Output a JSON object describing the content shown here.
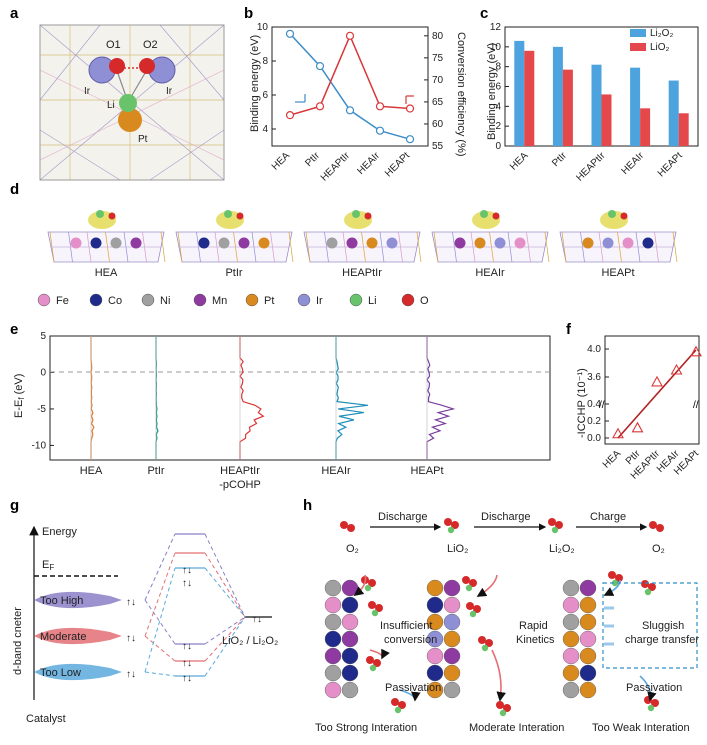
{
  "panel_labels": [
    "a",
    "b",
    "c",
    "d",
    "e",
    "f",
    "g",
    "h"
  ],
  "panel_a": {
    "atoms": [
      "O1",
      "O2",
      "Ir",
      "Ir",
      "Li",
      "Pt"
    ]
  },
  "chart_data": [
    {
      "type": "line",
      "panel": "b",
      "categories": [
        "HEA",
        "PtIr",
        "HEAPtIr",
        "HEAIr",
        "HEAPt"
      ],
      "ylabel": "Binding energy (eV)",
      "y2label": "Conversion efficiency (%)",
      "ylim": [
        3,
        10
      ],
      "y2lim": [
        55,
        82
      ],
      "yticks": [
        "4",
        "6",
        "8",
        "10"
      ],
      "y2ticks": [
        "55",
        "60",
        "65",
        "70",
        "75",
        "80"
      ],
      "series": [
        {
          "axis": "left",
          "color": "#3c8dc8",
          "values": [
            9.6,
            7.7,
            5.1,
            3.9,
            3.4
          ]
        },
        {
          "axis": "right",
          "color": "#d9383a",
          "values": [
            62,
            64,
            80,
            64,
            63.5
          ]
        }
      ]
    },
    {
      "type": "bar",
      "panel": "c",
      "categories": [
        "HEA",
        "PtIr",
        "HEAPtIr",
        "HEAIr",
        "HEAPt"
      ],
      "ylabel": "Binding energy (eV)",
      "ylim": [
        0,
        12
      ],
      "yticks": [
        "0",
        "2",
        "4",
        "6",
        "8",
        "10",
        "12"
      ],
      "legend_position": "top-right",
      "series": [
        {
          "name": "Li₂O₂",
          "color": "#4da3dd",
          "values": [
            10.6,
            10.0,
            8.2,
            7.9,
            6.6
          ]
        },
        {
          "name": "LiO₂",
          "color": "#e5484b",
          "values": [
            9.6,
            7.7,
            5.2,
            3.8,
            3.3
          ]
        }
      ]
    },
    {
      "type": "line",
      "panel": "e",
      "ylabel": "E-E_f (eV)",
      "ylim": [
        -12,
        5
      ],
      "yticks": [
        "5",
        "0",
        "-5",
        "-10"
      ],
      "categories": [
        "HEA",
        "PtIr",
        "HEAPtIr\n-pCOHP",
        "HEAIr",
        "HEAPt"
      ],
      "category_lines": [
        "HEA",
        "PtIr",
        "HEAPtIr",
        "-pCOHP",
        "HEAIr",
        "HEAPt"
      ],
      "series_colors": [
        "#e07a2e",
        "#1a8f8c",
        "#d9383a",
        "#1f8fb8",
        "#7a3f9c"
      ]
    },
    {
      "type": "scatter",
      "panel": "f",
      "categories": [
        "HEA",
        "PtIr",
        "HEAPtIr",
        "HEAIr",
        "HEAPt"
      ],
      "ylabel": "-ICCHP (10⁻¹)",
      "yticks": [
        "0.0",
        "0.2",
        "0.4",
        "3.6",
        "4.0"
      ],
      "values": [
        0.05,
        0.12,
        3.53,
        3.7,
        3.96
      ],
      "axis_break": true
    }
  ],
  "panel_d": {
    "structures": [
      "HEA",
      "PtIr",
      "HEAPtIr",
      "HEAIr",
      "HEAPt"
    ],
    "legend": [
      {
        "label": "Fe",
        "color": "#e58fc8"
      },
      {
        "label": "Co",
        "color": "#1f2a8a"
      },
      {
        "label": "Ni",
        "color": "#a0a0a0"
      },
      {
        "label": "Mn",
        "color": "#8e3aa0"
      },
      {
        "label": "Pt",
        "color": "#d98a1f"
      },
      {
        "label": "Ir",
        "color": "#8f8fd6"
      },
      {
        "label": "Li",
        "color": "#69c36a"
      },
      {
        "label": "O",
        "color": "#d62a2a"
      }
    ]
  },
  "panel_g": {
    "energy_label": "Energy",
    "ef_label": "E_F",
    "d_band_label": "d-band cneter",
    "levels": [
      "Too High",
      "Moderate",
      "Too Low"
    ],
    "level_colors": [
      "#8c7fc8",
      "#e36f74",
      "#5aa9dc"
    ],
    "catalyst_label": "Catalyst",
    "adsorbate_label": "LiO₂ / Li₂O₂"
  },
  "panel_h": {
    "steps": [
      "Discharge",
      "Discharge",
      "Charge"
    ],
    "species": [
      "O₂",
      "LiO₂",
      "Li₂O₂",
      "O₂"
    ],
    "annotations": [
      "Insufficient conversion",
      "Passivation",
      "Rapid Kinetics",
      "Sluggish charge transfer",
      "Passivation"
    ],
    "captions": [
      {
        "text": "Too Strong Interation",
        "color": "#8e5ab8"
      },
      {
        "text": "Moderate Interation",
        "color": "#d9383a"
      },
      {
        "text": "Too Weak Interation",
        "color": "#2f8fc8"
      }
    ]
  }
}
